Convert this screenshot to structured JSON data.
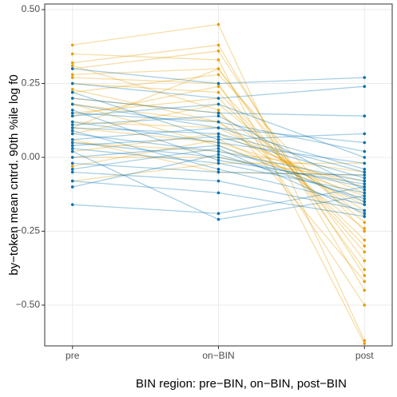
{
  "chart_data": {
    "type": "line",
    "y_label": "by−token mean cntrd. 90th %ile log f0",
    "x_label": "BIN region: pre−BIN, on−BIN, post−BIN",
    "categories": [
      "pre",
      "on−BIN",
      "post"
    ],
    "ylim": [
      -0.638,
      0.519
    ],
    "yticks": [
      {
        "value": -0.5,
        "label": "−0.50"
      },
      {
        "value": -0.25,
        "label": "−0.25"
      },
      {
        "value": 0,
        "label": "0.00"
      },
      {
        "value": 0.25,
        "label": "0.25"
      },
      {
        "value": 0.5,
        "label": "0.50"
      }
    ],
    "grid": true,
    "series": [
      {
        "color": "#E69F00",
        "values": [
          0.38,
          0.45,
          -0.62
        ]
      },
      {
        "color": "#E69F00",
        "values": [
          0.32,
          0.38,
          -0.45
        ]
      },
      {
        "color": "#E69F00",
        "values": [
          0.3,
          0.36,
          -0.4
        ]
      },
      {
        "color": "#E69F00",
        "values": [
          0.28,
          0.3,
          -0.35
        ]
      },
      {
        "color": "#E69F00",
        "values": [
          0.25,
          0.22,
          -0.3
        ]
      },
      {
        "color": "#E69F00",
        "values": [
          0.22,
          0.28,
          -0.25
        ]
      },
      {
        "color": "#E69F00",
        "values": [
          0.2,
          0.15,
          -0.2
        ]
      },
      {
        "color": "#E69F00",
        "values": [
          0.18,
          0.12,
          -0.18
        ]
      },
      {
        "color": "#E69F00",
        "values": [
          0.15,
          0.2,
          -0.28
        ]
      },
      {
        "color": "#E69F00",
        "values": [
          0.12,
          0.1,
          -0.15
        ]
      },
      {
        "color": "#E69F00",
        "values": [
          0.1,
          0.05,
          -0.1
        ]
      },
      {
        "color": "#E69F00",
        "values": [
          0.08,
          0.18,
          -0.22
        ]
      },
      {
        "color": "#E69F00",
        "values": [
          0.05,
          0.02,
          -0.05
        ]
      },
      {
        "color": "#E69F00",
        "values": [
          0.02,
          0.08,
          -0.12
        ]
      },
      {
        "color": "#E69F00",
        "values": [
          0.0,
          0.0,
          -0.08
        ]
      },
      {
        "color": "#E69F00",
        "values": [
          -0.03,
          0.06,
          -0.16
        ]
      },
      {
        "color": "#E69F00",
        "values": [
          -0.08,
          -0.02,
          -0.02
        ]
      },
      {
        "color": "#E69F00",
        "values": [
          0.27,
          0.25,
          -0.5
        ]
      },
      {
        "color": "#E69F00",
        "values": [
          0.35,
          0.33,
          -0.63
        ]
      },
      {
        "color": "#E69F00",
        "values": [
          0.14,
          0.24,
          -0.32
        ]
      },
      {
        "color": "#E69F00",
        "values": [
          0.18,
          0.04,
          -0.13
        ]
      },
      {
        "color": "#E69F00",
        "values": [
          0.1,
          0.3,
          -0.38
        ]
      },
      {
        "color": "#E69F00",
        "values": [
          0.23,
          0.12,
          -0.24
        ]
      },
      {
        "color": "#E69F00",
        "values": [
          0.06,
          -0.05,
          -0.06
        ]
      },
      {
        "color": "#E69F00",
        "values": [
          0.31,
          0.16,
          -0.42
        ]
      },
      {
        "color": "#0072B2",
        "values": [
          0.3,
          0.25,
          0.27
        ]
      },
      {
        "color": "#0072B2",
        "values": [
          0.25,
          0.2,
          0.24
        ]
      },
      {
        "color": "#0072B2",
        "values": [
          0.2,
          0.15,
          0.14
        ]
      },
      {
        "color": "#0072B2",
        "values": [
          0.18,
          0.1,
          0.05
        ]
      },
      {
        "color": "#0072B2",
        "values": [
          0.15,
          0.12,
          0.02
        ]
      },
      {
        "color": "#0072B2",
        "values": [
          0.12,
          0.05,
          -0.02
        ]
      },
      {
        "color": "#0072B2",
        "values": [
          0.1,
          0.08,
          -0.05
        ]
      },
      {
        "color": "#0072B2",
        "values": [
          0.08,
          0.02,
          -0.08
        ]
      },
      {
        "color": "#0072B2",
        "values": [
          0.05,
          0.0,
          -0.1
        ]
      },
      {
        "color": "#0072B2",
        "values": [
          0.03,
          -0.02,
          -0.12
        ]
      },
      {
        "color": "#0072B2",
        "values": [
          0.0,
          0.04,
          -0.15
        ]
      },
      {
        "color": "#0072B2",
        "values": [
          -0.02,
          -0.05,
          -0.06
        ]
      },
      {
        "color": "#0072B2",
        "values": [
          -0.05,
          -0.08,
          -0.18
        ]
      },
      {
        "color": "#0072B2",
        "values": [
          -0.08,
          -0.12,
          -0.2
        ]
      },
      {
        "color": "#0072B2",
        "values": [
          -0.16,
          -0.19,
          -0.1
        ]
      },
      {
        "color": "#0072B2",
        "values": [
          0.02,
          -0.21,
          -0.13
        ]
      },
      {
        "color": "#0072B2",
        "values": [
          0.14,
          0.18,
          0.0
        ]
      },
      {
        "color": "#0072B2",
        "values": [
          0.06,
          0.1,
          -0.04
        ]
      },
      {
        "color": "#0072B2",
        "values": [
          0.09,
          -0.04,
          -0.16
        ]
      },
      {
        "color": "#0072B2",
        "values": [
          0.22,
          0.06,
          0.08
        ]
      },
      {
        "color": "#0072B2",
        "values": [
          -0.1,
          0.01,
          -0.14
        ]
      },
      {
        "color": "#0072B2",
        "values": [
          0.11,
          0.14,
          -0.11
        ]
      },
      {
        "color": "#0072B2",
        "values": [
          0.04,
          0.07,
          -0.07
        ]
      },
      {
        "color": "#0072B2",
        "values": [
          0.16,
          -0.01,
          -0.09
        ]
      },
      {
        "color": "#0072B2",
        "values": [
          -0.04,
          0.03,
          -0.19
        ]
      }
    ]
  }
}
